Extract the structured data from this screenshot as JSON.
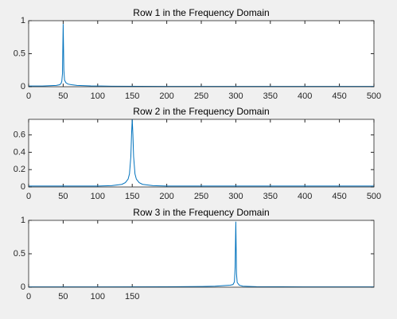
{
  "chart_data": [
    {
      "type": "line",
      "title": "Row 1 in the Frequency Domain",
      "color": "#0072bd",
      "x": [
        0,
        20,
        40,
        45,
        47,
        48,
        49,
        50,
        51,
        52,
        54,
        57,
        62,
        70,
        90,
        120,
        200,
        300,
        400,
        500
      ],
      "values": [
        0.01,
        0.01,
        0.02,
        0.03,
        0.05,
        0.08,
        0.2,
        0.95,
        0.25,
        0.1,
        0.06,
        0.04,
        0.03,
        0.02,
        0.012,
        0.008,
        0.005,
        0.004,
        0.004,
        0.004
      ],
      "xlim": [
        0,
        500
      ],
      "xticks": [
        0,
        50,
        100,
        150,
        200,
        250,
        300,
        350,
        400,
        450,
        500
      ],
      "ylim": [
        0,
        1
      ],
      "yticks": [
        0,
        0.5,
        1
      ]
    },
    {
      "type": "line",
      "title": "Row 2 in the Frequency Domain",
      "color": "#0072bd",
      "x": [
        0,
        50,
        100,
        120,
        135,
        140,
        144,
        146,
        148,
        149,
        150,
        151,
        152,
        154,
        156,
        160,
        165,
        180,
        200,
        300,
        400,
        500
      ],
      "values": [
        0.01,
        0.01,
        0.01,
        0.015,
        0.03,
        0.05,
        0.09,
        0.15,
        0.35,
        0.6,
        0.78,
        0.6,
        0.35,
        0.15,
        0.09,
        0.05,
        0.03,
        0.015,
        0.01,
        0.01,
        0.01,
        0.01
      ],
      "xlim": [
        0,
        500
      ],
      "xticks": [
        0,
        50,
        100,
        150,
        200,
        250,
        300,
        350,
        400,
        450,
        500
      ],
      "ylim": [
        0,
        0.78
      ],
      "yticks": [
        0,
        0.2,
        0.4,
        0.6
      ]
    },
    {
      "type": "line",
      "title": "Row 3 in the Frequency Domain",
      "color": "#0072bd",
      "x": [
        0,
        100,
        200,
        250,
        270,
        285,
        292,
        296,
        298,
        299,
        300,
        301,
        302,
        305,
        310,
        330,
        400,
        500
      ],
      "values": [
        0.005,
        0.005,
        0.006,
        0.01,
        0.015,
        0.025,
        0.03,
        0.04,
        0.08,
        0.3,
        0.98,
        0.2,
        0.07,
        0.03,
        0.015,
        0.008,
        0.005,
        0.005
      ],
      "xlim": [
        0,
        500
      ],
      "xticks": [
        0,
        50,
        100,
        150
      ],
      "ylim": [
        0,
        1
      ],
      "yticks": [
        0,
        0.5,
        1
      ]
    }
  ]
}
